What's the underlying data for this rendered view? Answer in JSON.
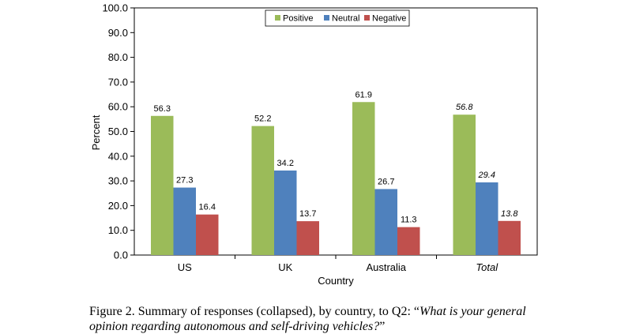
{
  "chart_data": {
    "type": "bar",
    "categories": [
      "US",
      "UK",
      "Australia",
      "Total"
    ],
    "italic_categories": [
      "Total"
    ],
    "series": [
      {
        "name": "Positive",
        "color": "#9bbb59",
        "values": [
          56.3,
          52.2,
          61.9,
          56.8
        ]
      },
      {
        "name": "Neutral",
        "color": "#4f81bd",
        "values": [
          27.3,
          34.2,
          26.7,
          29.4
        ]
      },
      {
        "name": "Negative",
        "color": "#c0504d",
        "values": [
          16.4,
          13.7,
          11.3,
          13.8
        ]
      }
    ],
    "data_labels": [
      [
        "56.3",
        "27.3",
        "16.4"
      ],
      [
        "52.2",
        "34.2",
        "13.7"
      ],
      [
        "61.9",
        "26.7",
        "11.3"
      ],
      [
        "56.8",
        "29.4",
        "13.8"
      ]
    ],
    "yticks": [
      "0.0",
      "10.0",
      "20.0",
      "30.0",
      "40.0",
      "50.0",
      "60.0",
      "70.0",
      "80.0",
      "90.0",
      "100.0"
    ],
    "ylim": [
      0,
      100
    ],
    "xlabel": "Country",
    "ylabel": "Percent",
    "legend_position": "top",
    "grid": false
  },
  "caption": {
    "prefix": "Figure 2.  Summary of responses (collapsed), by country, to Q2: “",
    "question": "What is your general opinion regarding autonomous and self-driving vehicles?",
    "suffix": "”"
  }
}
